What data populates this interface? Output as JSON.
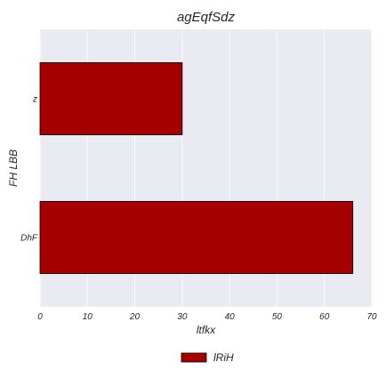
{
  "chart_data": {
    "type": "bar",
    "orientation": "horizontal",
    "title": "agEqfSdz",
    "xlabel": "ltfkx",
    "ylabel": "FH LBB",
    "categories": [
      "z",
      "DhF"
    ],
    "series": [
      {
        "name": "lRiH",
        "values": [
          30,
          66
        ],
        "color": "#a50000"
      }
    ],
    "xlim": [
      0,
      70
    ],
    "xticks": [
      "0",
      "10",
      "20",
      "30",
      "40",
      "50",
      "60",
      "70"
    ],
    "grid": true,
    "legend_position": "bottom-center"
  },
  "colors": {
    "plot_background": "#eaeaf2",
    "grid": "#ffffff",
    "bar_edge": "#000000"
  }
}
